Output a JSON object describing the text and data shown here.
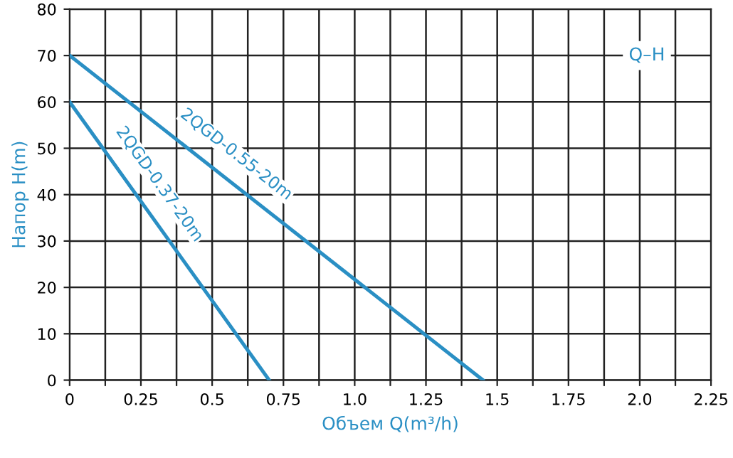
{
  "chart_data": {
    "type": "line",
    "xlabel": "Объем Q(m³/h)",
    "ylabel": "Напор H(m)",
    "series": [
      {
        "name": "2QGD-0.55-20m",
        "color": "#2a8fc4",
        "x": [
          0,
          1.45
        ],
        "values": [
          70,
          0
        ]
      },
      {
        "name": "2QGD-0.37-20m",
        "color": "#2a8fc4",
        "x": [
          0,
          0.7
        ],
        "values": [
          60,
          0
        ]
      }
    ],
    "annotations": [
      "Q–H"
    ],
    "xlim": [
      0,
      2.25
    ],
    "ylim": [
      0,
      80
    ],
    "xticks": [
      0,
      {
        "value": 0.125,
        "label": null
      },
      0.25,
      {
        "value": 0.375,
        "label": null
      },
      0.5,
      {
        "value": 0.625,
        "label": null
      },
      0.75,
      {
        "value": 0.875,
        "label": null
      },
      {
        "value": 1.0,
        "label": "1.0"
      },
      {
        "value": 1.125,
        "label": null
      },
      1.25,
      {
        "value": 1.375,
        "label": null
      },
      1.5,
      {
        "value": 1.625,
        "label": null
      },
      1.75,
      {
        "value": 1.875,
        "label": null
      },
      {
        "value": 2.0,
        "label": "2.0"
      },
      {
        "value": 2.125,
        "label": null
      },
      2.25
    ],
    "yticks": [
      0,
      10,
      20,
      30,
      40,
      50,
      60,
      70,
      80
    ],
    "grid": true,
    "legend": false,
    "marker": "none",
    "line_style": "solid"
  }
}
